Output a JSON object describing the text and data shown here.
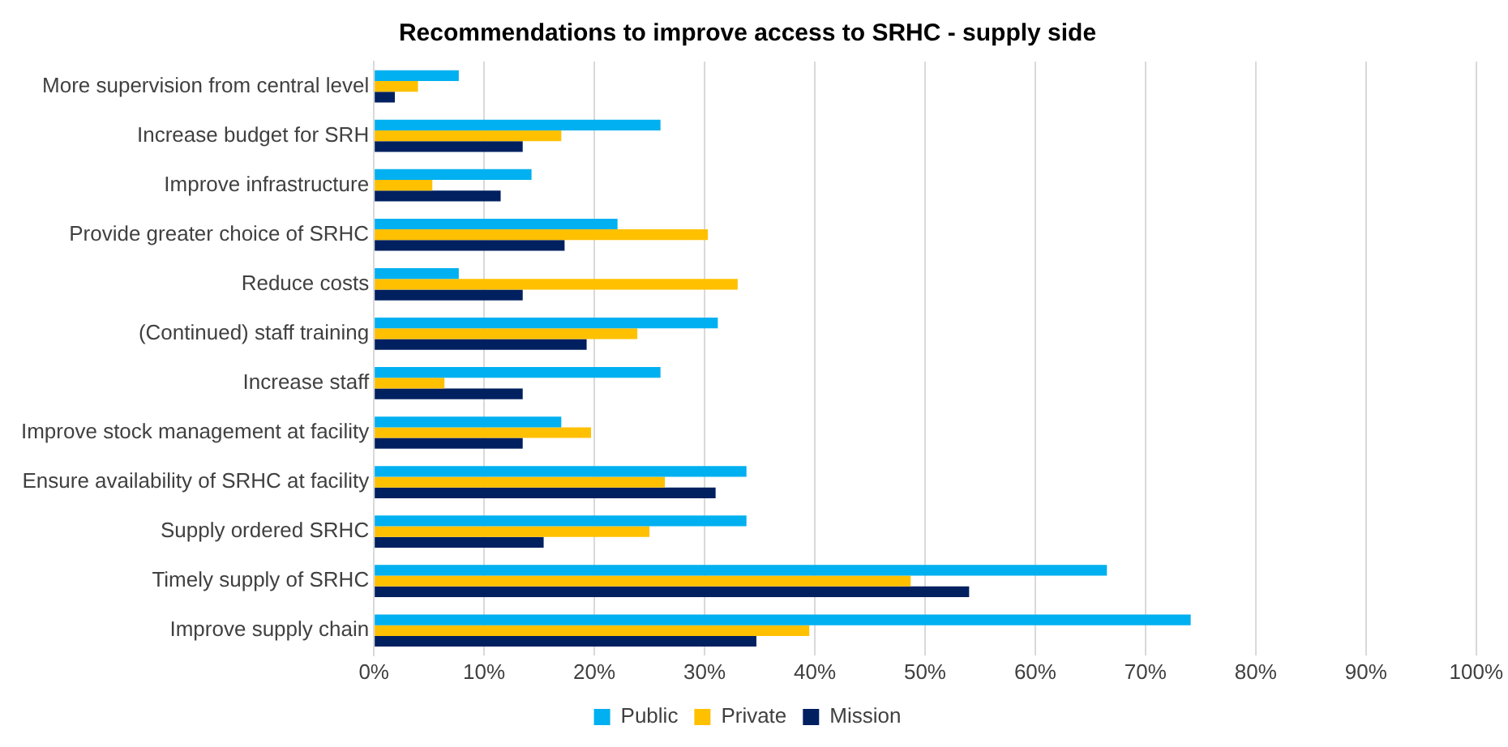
{
  "chart_data": {
    "type": "bar",
    "orientation": "horizontal",
    "title": "Recommendations to improve access to SRHC - supply side",
    "categories": [
      "More supervision from central level",
      "Increase budget for SRH",
      "Improve infrastructure",
      "Provide greater choice of SRHC",
      "Reduce costs",
      "(Continued) staff training",
      "Increase staff",
      "Improve stock management at facility",
      "Ensure availability of SRHC at facility",
      "Supply ordered SRHC",
      "Timely supply of SRHC",
      "Improve supply chain"
    ],
    "series": [
      {
        "name": "Public",
        "color": "#00b0f0",
        "values": [
          7.7,
          26,
          14.3,
          22.1,
          7.7,
          31.2,
          26,
          17,
          33.8,
          33.8,
          66.5,
          74.1
        ]
      },
      {
        "name": "Private",
        "color": "#ffc000",
        "values": [
          4,
          17,
          5.3,
          30.3,
          33,
          23.9,
          6.4,
          19.7,
          26.4,
          25,
          48.7,
          39.5
        ]
      },
      {
        "name": "Mission",
        "color": "#002060",
        "values": [
          1.9,
          13.5,
          11.5,
          17.3,
          13.5,
          19.3,
          13.5,
          13.5,
          31,
          15.4,
          54,
          34.7
        ]
      }
    ],
    "xlim": [
      0,
      100
    ],
    "xticks": [
      {
        "value": 0,
        "label": "0%"
      },
      {
        "value": 10,
        "label": "10%"
      },
      {
        "value": 20,
        "label": "20%"
      },
      {
        "value": 30,
        "label": "30%"
      },
      {
        "value": 40,
        "label": "40%"
      },
      {
        "value": 50,
        "label": "50%"
      },
      {
        "value": 60,
        "label": "60%"
      },
      {
        "value": 70,
        "label": "70%"
      },
      {
        "value": 80,
        "label": "80%"
      },
      {
        "value": 90,
        "label": "90%"
      },
      {
        "value": 100,
        "label": "100%"
      }
    ],
    "grid": "x",
    "legend": "bottom"
  }
}
